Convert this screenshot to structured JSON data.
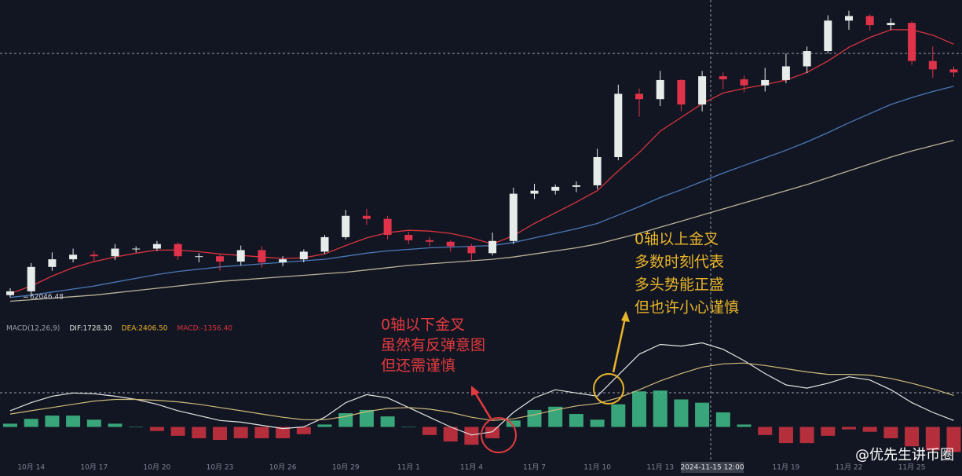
{
  "chart_data": [
    {
      "type": "candlestick",
      "categories": [
        null,
        "10月 14",
        null,
        null,
        "10月 17",
        null,
        null,
        "10月 20",
        null,
        null,
        "10月 23",
        null,
        null,
        "10月 26",
        null,
        null,
        "10月 29",
        null,
        null,
        "11月 1",
        null,
        null,
        "11月 4",
        null,
        null,
        "11月 7",
        null,
        null,
        "11月 10",
        null,
        null,
        "11月 13",
        null,
        null,
        null,
        null,
        null,
        "11月 19",
        null,
        null,
        "11月 22",
        null,
        null,
        "11月 25",
        null,
        null
      ],
      "open": [
        62300,
        62800,
        66000,
        67000,
        67600,
        67400,
        68400,
        68400,
        69000,
        67400,
        67400,
        66700,
        68200,
        66600,
        67000,
        68000,
        69900,
        72700,
        72300,
        70200,
        69500,
        69300,
        68700,
        67800,
        69400,
        75600,
        76000,
        76500,
        76700,
        80400,
        88700,
        88000,
        90500,
        87300,
        91000,
        90600,
        89800,
        90500,
        92300,
        94300,
        98300,
        98900,
        97700,
        98000,
        93000,
        91900
      ],
      "high": [
        63200,
        66500,
        67900,
        68400,
        68100,
        69000,
        68700,
        69400,
        69200,
        67800,
        67600,
        68800,
        68700,
        67400,
        68300,
        70200,
        73500,
        73600,
        72700,
        70600,
        69900,
        69500,
        69000,
        70500,
        76400,
        76900,
        76800,
        77200,
        81500,
        89900,
        89400,
        91700,
        90600,
        91700,
        91500,
        91100,
        92100,
        94000,
        94900,
        99000,
        99600,
        99100,
        98600,
        98200,
        94900,
        92300
      ],
      "low": [
        62000,
        62400,
        65500,
        66600,
        66700,
        66900,
        67900,
        68100,
        66900,
        66600,
        65500,
        66200,
        65900,
        66100,
        66600,
        67700,
        69600,
        71500,
        69600,
        69000,
        68700,
        68000,
        66800,
        67500,
        69000,
        74900,
        75500,
        75800,
        76200,
        80000,
        85700,
        87100,
        86400,
        86400,
        89300,
        88900,
        89000,
        90100,
        91400,
        94000,
        97100,
        97000,
        97100,
        92500,
        90800,
        90900
      ],
      "close": [
        62800,
        66000,
        67000,
        67600,
        67400,
        68400,
        68400,
        69000,
        67400,
        67400,
        66700,
        68200,
        66600,
        67000,
        68000,
        69900,
        72700,
        72300,
        70200,
        69500,
        69300,
        68700,
        67800,
        69400,
        75600,
        76000,
        76500,
        76700,
        80400,
        88700,
        88000,
        90500,
        87300,
        91000,
        90600,
        89800,
        90500,
        92300,
        94300,
        98300,
        98900,
        97700,
        98000,
        93000,
        91900,
        91500
      ],
      "up_color": "#e6ece9",
      "down_color": "#e0334a",
      "series": [
        {
          "color": "#d8343f",
          "values": [
            62500,
            63500,
            64800,
            65900,
            66700,
            67300,
            67800,
            68200,
            68200,
            68000,
            67700,
            67500,
            67300,
            67100,
            67200,
            67700,
            68800,
            69800,
            70500,
            70800,
            70700,
            70400,
            69800,
            69000,
            70100,
            71700,
            73100,
            74500,
            76000,
            78600,
            81000,
            83800,
            85600,
            87400,
            88800,
            89400,
            89900,
            90500,
            91500,
            93000,
            94800,
            96100,
            97100,
            97100,
            96400,
            95200
          ]
        },
        {
          "color": "#4a78b8",
          "values": [
            62000,
            62300,
            62700,
            63100,
            63500,
            64000,
            64500,
            65000,
            65400,
            65700,
            66000,
            66200,
            66400,
            66600,
            66800,
            67000,
            67400,
            67800,
            68100,
            68300,
            68500,
            68600,
            68700,
            68800,
            69200,
            69800,
            70400,
            71000,
            71700,
            72800,
            73900,
            75100,
            76100,
            77200,
            78300,
            79300,
            80300,
            81300,
            82400,
            83600,
            84900,
            86100,
            87300,
            88200,
            89000,
            89700
          ]
        },
        {
          "color": "#b9b29a",
          "values": [
            61500,
            61700,
            61900,
            62100,
            62300,
            62600,
            62900,
            63200,
            63500,
            63800,
            64100,
            64300,
            64500,
            64700,
            64900,
            65100,
            65300,
            65600,
            65900,
            66200,
            66400,
            66600,
            66800,
            67000,
            67300,
            67700,
            68100,
            68500,
            69000,
            69700,
            70400,
            71200,
            72000,
            72800,
            73600,
            74400,
            75200,
            76000,
            76800,
            77700,
            78600,
            79500,
            80400,
            81200,
            81900,
            82600
          ]
        }
      ],
      "low_label": 62046.48,
      "ylim": [
        59800,
        101000
      ],
      "crosshair_label": "2024-11-15 12:00"
    },
    {
      "type": "macd",
      "legend": [
        "MACD(12,26,9)",
        "DIF:1728.30",
        "DEA:2406.50",
        "MACD:-1356.40"
      ],
      "series": [
        {
          "name": "DIF",
          "color": "#e4e4e4",
          "values": [
            1000,
            1500,
            1900,
            2100,
            2050,
            1900,
            1700,
            1400,
            1000,
            700,
            400,
            300,
            100,
            -100,
            0,
            600,
            1500,
            2000,
            1800,
            1200,
            600,
            0,
            -500,
            -300,
            900,
            1800,
            2300,
            2100,
            1900,
            3200,
            4500,
            5100,
            5000,
            5200,
            4800,
            4100,
            3300,
            2600,
            2400,
            2700,
            3100,
            2900,
            2300,
            1500,
            900,
            400
          ]
        },
        {
          "name": "DEA",
          "color": "#cdbb7a",
          "values": [
            800,
            1000,
            1200,
            1400,
            1600,
            1700,
            1700,
            1650,
            1550,
            1400,
            1200,
            1000,
            800,
            600,
            450,
            450,
            650,
            950,
            1150,
            1200,
            1100,
            900,
            600,
            400,
            500,
            750,
            1050,
            1300,
            1450,
            1800,
            2300,
            2850,
            3300,
            3700,
            3900,
            3950,
            3800,
            3600,
            3400,
            3250,
            3250,
            3200,
            3000,
            2700,
            2350,
            1950
          ]
        }
      ],
      "histogram": [
        200,
        500,
        700,
        700,
        450,
        200,
        0,
        -250,
        -550,
        -700,
        -800,
        -700,
        -700,
        -700,
        -450,
        150,
        850,
        1050,
        650,
        0,
        -500,
        -900,
        -1100,
        -700,
        400,
        1050,
        1250,
        800,
        450,
        1400,
        2200,
        2250,
        1700,
        1500,
        900,
        150,
        -500,
        -1000,
        -1000,
        -550,
        -150,
        -300,
        -700,
        -1200,
        -1450,
        -1550
      ],
      "pos_color": "#3fbf8a",
      "neg_color": "#d2323f",
      "ylim": [
        -2500,
        6000
      ]
    }
  ],
  "annotations": {
    "below": [
      "0轴以下金叉",
      "虽然有反弹意图",
      "但还需谨慎"
    ],
    "above": [
      "0轴以上金叉",
      "多数时刻代表",
      "多头势能正盛",
      "但也许小心谨慎"
    ]
  },
  "watermark": "@优先生讲币圈"
}
